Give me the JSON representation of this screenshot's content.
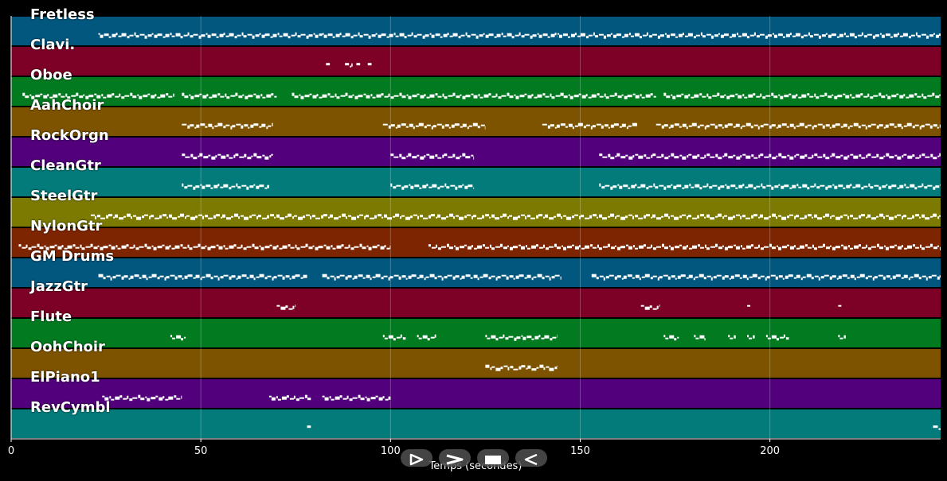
{
  "chart_data": {
    "type": "piano-roll",
    "xlabel": "Temps (secondes)",
    "xlim": [
      0,
      245
    ],
    "x_ticks": [
      0,
      50,
      100,
      150,
      200
    ],
    "grid": true,
    "tracks": [
      {
        "name": "Fretless",
        "color": "#02577f",
        "segments": [
          [
            23,
            82
          ],
          [
            82,
            144
          ],
          [
            144,
            245
          ]
        ]
      },
      {
        "name": "Clavi.",
        "color": "#7d0026",
        "segments": [
          [
            83,
            84
          ],
          [
            88,
            90
          ],
          [
            91,
            92
          ],
          [
            94,
            95
          ]
        ]
      },
      {
        "name": "Oboe",
        "color": "#027a20",
        "segments": [
          [
            3,
            43
          ],
          [
            45,
            70
          ],
          [
            74,
            145
          ],
          [
            145,
            170
          ],
          [
            172,
            245
          ]
        ]
      },
      {
        "name": "AahChoir",
        "color": "#7d5300",
        "segments": [
          [
            45,
            69
          ],
          [
            98,
            125
          ],
          [
            140,
            165
          ],
          [
            170,
            245
          ]
        ]
      },
      {
        "name": "RockOrgn",
        "color": "#52007b",
        "segments": [
          [
            45,
            69
          ],
          [
            100,
            122
          ],
          [
            155,
            245
          ]
        ]
      },
      {
        "name": "CleanGtr",
        "color": "#027b7a",
        "segments": [
          [
            45,
            68
          ],
          [
            100,
            122
          ],
          [
            155,
            245
          ]
        ]
      },
      {
        "name": "SteelGtr",
        "color": "#7c7a00",
        "segments": [
          [
            21,
            245
          ]
        ]
      },
      {
        "name": "NylonGtr",
        "color": "#7d2500",
        "segments": [
          [
            2,
            100
          ],
          [
            110,
            245
          ]
        ]
      },
      {
        "name": "GM Drums",
        "color": "#02577f",
        "segments": [
          [
            23,
            78
          ],
          [
            82,
            145
          ],
          [
            153,
            245
          ]
        ]
      },
      {
        "name": "JazzGtr",
        "color": "#7d0026",
        "segments": [
          [
            70,
            75
          ],
          [
            166,
            171
          ],
          [
            194,
            195
          ],
          [
            218,
            219
          ]
        ]
      },
      {
        "name": "Flute",
        "color": "#027a20",
        "segments": [
          [
            42,
            46
          ],
          [
            98,
            104
          ],
          [
            107,
            112
          ],
          [
            125,
            144
          ],
          [
            172,
            176
          ],
          [
            180,
            183
          ],
          [
            189,
            191
          ],
          [
            194,
            196
          ],
          [
            199,
            205
          ],
          [
            218,
            220
          ]
        ]
      },
      {
        "name": "OohChoir",
        "color": "#7d5300",
        "segments": [
          [
            125,
            144
          ]
        ]
      },
      {
        "name": "ElPiano1",
        "color": "#52007b",
        "segments": [
          [
            24,
            45
          ],
          [
            68,
            79
          ],
          [
            82,
            100
          ]
        ]
      },
      {
        "name": "RevCymbl",
        "color": "#027b7a",
        "segments": [
          [
            78,
            79
          ],
          [
            243,
            245
          ]
        ]
      }
    ]
  },
  "controls": [
    {
      "name": "play-button",
      "icon": "play-outline-icon"
    },
    {
      "name": "forward-button",
      "icon": "chevron-right-icon"
    },
    {
      "name": "stop-button",
      "icon": "stop-icon"
    },
    {
      "name": "rewind-button",
      "icon": "rewind-icon"
    }
  ]
}
